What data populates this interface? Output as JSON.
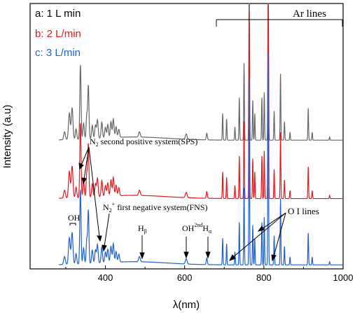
{
  "chart_data": {
    "type": "line",
    "xlabel": "λ(nm)",
    "ylabel": "Intensity (a.u)",
    "xlim": [
      210,
      1000
    ],
    "x_ticks": [
      400,
      600,
      800,
      1000
    ],
    "y_ticks_shown": false,
    "legend": {
      "placement": "top-left",
      "entries": [
        {
          "label": "a: 1  L min",
          "color": "#666666"
        },
        {
          "label": "b: 2  L/min",
          "color": "#e8171d"
        },
        {
          "label": "c: 3  L/min",
          "color": "#1f5fd1"
        }
      ]
    },
    "series": [
      {
        "id": "a",
        "color": "#666666",
        "baseline_frac": 0.515,
        "scale": 1.0
      },
      {
        "id": "b",
        "color": "#e8171d",
        "baseline_frac": 0.735,
        "scale": 1.0
      },
      {
        "id": "c",
        "color": "#1f5fd1",
        "baseline_frac": 0.985,
        "scale": 1.0
      }
    ],
    "peaks": [
      {
        "x": 297,
        "h": 0.03,
        "w": 3
      },
      {
        "x": 309,
        "h": 0.1,
        "w": 3
      },
      {
        "x": 316,
        "h": 0.12,
        "w": 3
      },
      {
        "x": 326,
        "h": 0.04,
        "w": 2.5
      },
      {
        "x": 337,
        "h": 0.28,
        "w": 2.2
      },
      {
        "x": 345,
        "h": 0.06,
        "w": 2.5
      },
      {
        "x": 353,
        "h": 0.09,
        "w": 2.2
      },
      {
        "x": 357,
        "h": 0.2,
        "w": 2.2
      },
      {
        "x": 367,
        "h": 0.05,
        "w": 2.5
      },
      {
        "x": 375,
        "h": 0.05,
        "w": 2.5
      },
      {
        "x": 380,
        "h": 0.07,
        "w": 2.5
      },
      {
        "x": 391,
        "h": 0.06,
        "w": 2.5
      },
      {
        "x": 400,
        "h": 0.04,
        "w": 2.5
      },
      {
        "x": 406,
        "h": 0.05,
        "w": 2.5
      },
      {
        "x": 414,
        "h": 0.06,
        "w": 2.5
      },
      {
        "x": 420,
        "h": 0.07,
        "w": 2.5
      },
      {
        "x": 427,
        "h": 0.04,
        "w": 2.5
      },
      {
        "x": 434,
        "h": 0.03,
        "w": 2.5
      },
      {
        "x": 486,
        "h": 0.02,
        "w": 3
      },
      {
        "x": 604,
        "h": 0.02,
        "w": 3
      },
      {
        "x": 656,
        "h": 0.025,
        "w": 2
      },
      {
        "x": 696,
        "h": 0.1,
        "w": 1.2
      },
      {
        "x": 706,
        "h": 0.08,
        "w": 1.2
      },
      {
        "x": 727,
        "h": 0.05,
        "w": 1.2
      },
      {
        "x": 738,
        "h": 0.16,
        "w": 1.2
      },
      {
        "x": 750,
        "h": 0.29,
        "w": 1.2
      },
      {
        "x": 763,
        "h": 0.7,
        "w": 1.2
      },
      {
        "x": 772,
        "h": 0.15,
        "w": 1.2
      },
      {
        "x": 777,
        "h": 0.1,
        "w": 1.2
      },
      {
        "x": 795,
        "h": 0.16,
        "w": 1.2
      },
      {
        "x": 801,
        "h": 0.18,
        "w": 1.2
      },
      {
        "x": 811,
        "h": 0.8,
        "w": 1.2
      },
      {
        "x": 826,
        "h": 0.11,
        "w": 1.2
      },
      {
        "x": 842,
        "h": 0.25,
        "w": 1.2
      },
      {
        "x": 852,
        "h": 0.07,
        "w": 1.2
      },
      {
        "x": 866,
        "h": 0.03,
        "w": 1.2
      },
      {
        "x": 912,
        "h": 0.12,
        "w": 1.2
      },
      {
        "x": 922,
        "h": 0.03,
        "w": 1.2
      },
      {
        "x": 966,
        "h": 0.012,
        "w": 1.2
      }
    ],
    "annotations": [
      {
        "text": "Ar lines",
        "x": 890,
        "y_frac": 0.03
      },
      {
        "text": "N2 second positive system(SPS)",
        "x": 345,
        "y_frac": 0.44
      },
      {
        "text": "N2+ first negative system(FNS)",
        "x": 333,
        "y_frac": 0.675
      },
      {
        "text": "OH",
        "x": 293,
        "y_frac": 0.705
      },
      {
        "text": "Hβ",
        "x": 486,
        "y_frac": 0.74
      },
      {
        "text": "OH2ndHα",
        "x": 615,
        "y_frac": 0.74
      },
      {
        "text": "O I lines",
        "x": 848,
        "y_frac": 0.68
      }
    ]
  }
}
